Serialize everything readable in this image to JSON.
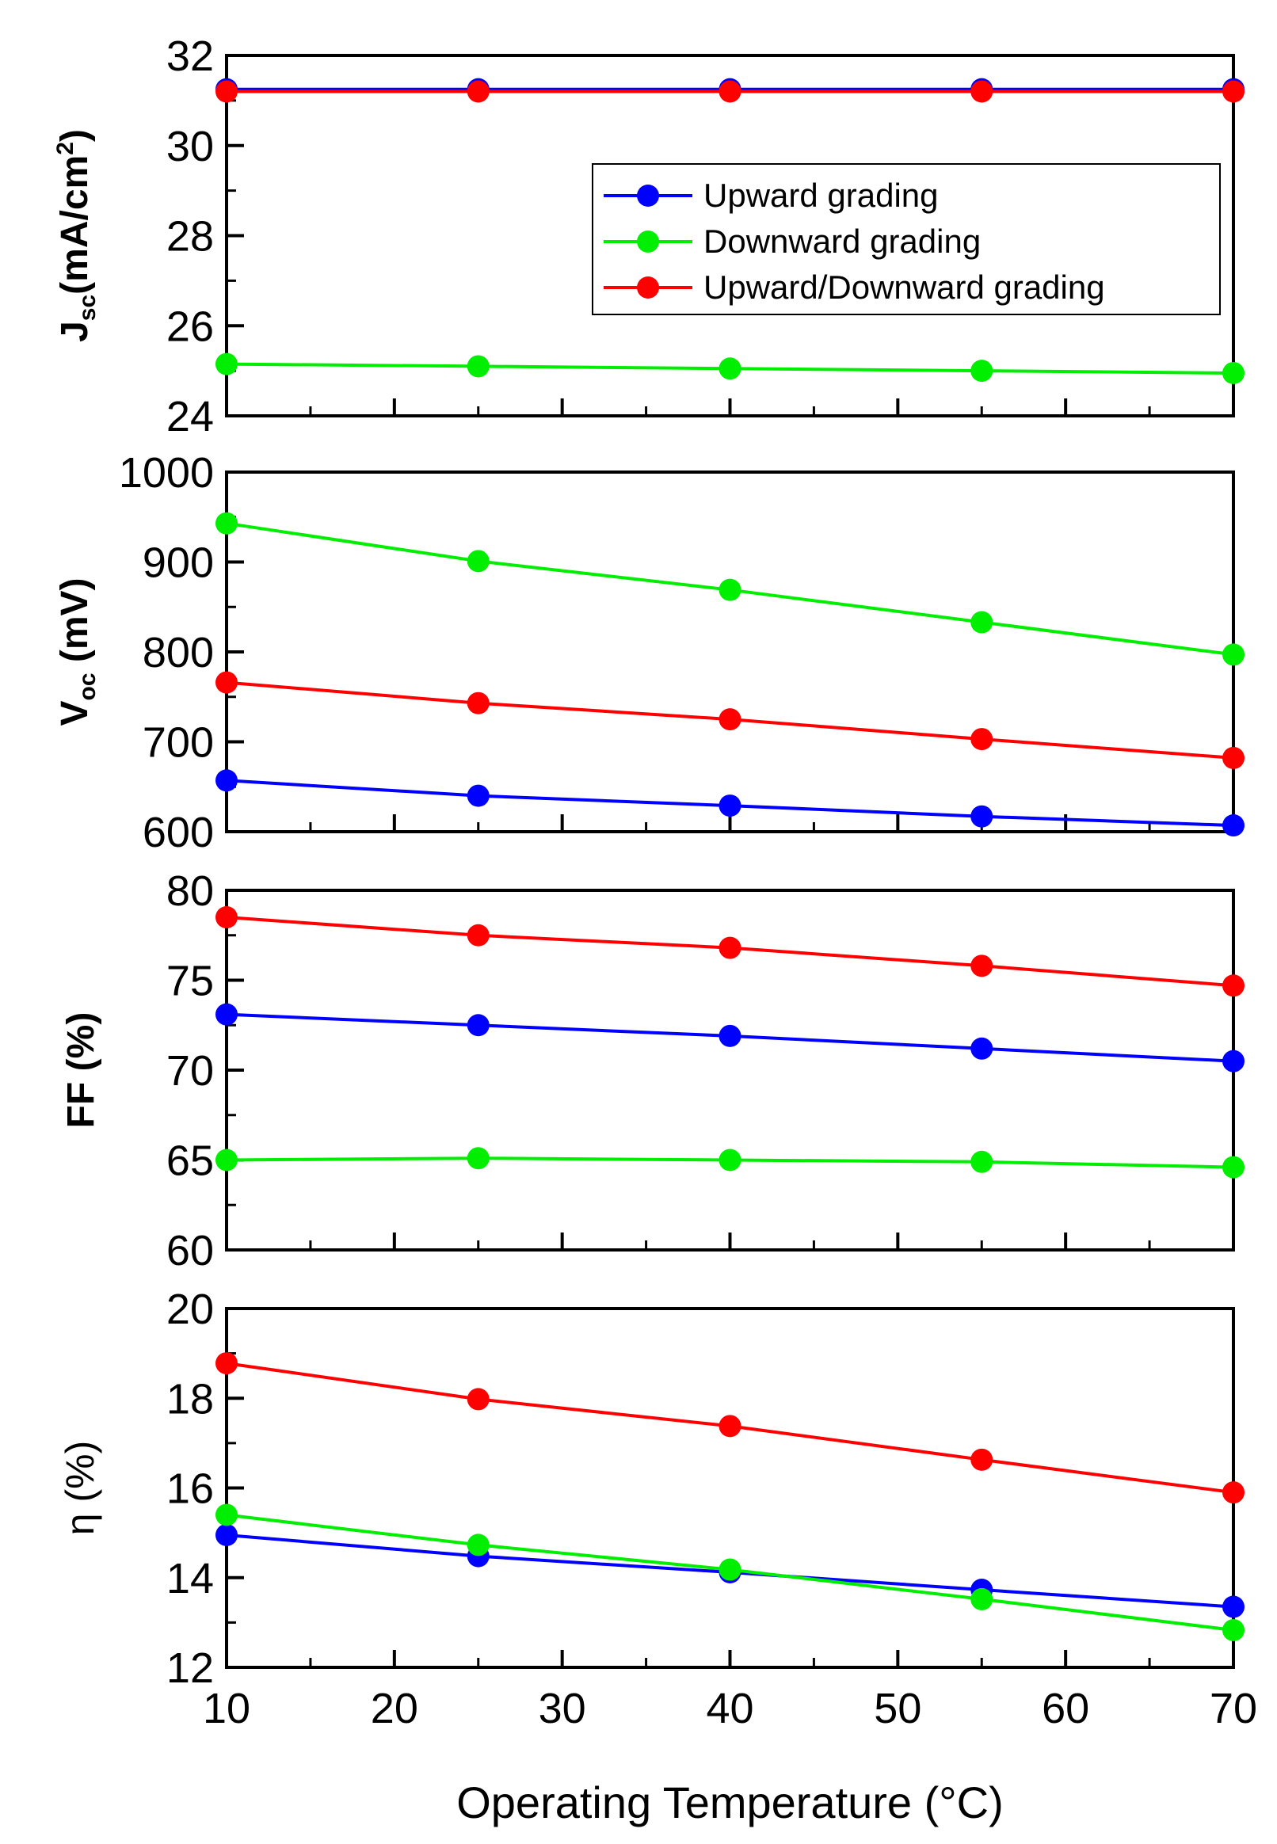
{
  "chart_data": [
    {
      "type": "line",
      "id": "jsc",
      "ylabel": {
        "main": "J",
        "sub": "sc",
        "rest": "(mA/cm",
        "sup": "2",
        "end": ")"
      },
      "ylim": [
        24,
        32
      ],
      "yticks": [
        24,
        26,
        28,
        30,
        32
      ],
      "ytick_labels": [
        "24",
        "26",
        "28",
        "30",
        "32"
      ],
      "x": [
        10,
        25,
        40,
        55,
        70
      ],
      "series": [
        {
          "name": "Upward grading",
          "color": "#0000ff",
          "values": [
            31.25,
            31.25,
            31.25,
            31.25,
            31.25
          ]
        },
        {
          "name": "Downward grading",
          "color": "#00ee00",
          "values": [
            25.15,
            25.1,
            25.05,
            25.0,
            24.95
          ]
        },
        {
          "name": "Upward/Downward grading",
          "color": "#ff0000",
          "values": [
            31.2,
            31.2,
            31.2,
            31.2,
            31.2
          ]
        }
      ],
      "legend": {
        "position": "top-right",
        "entries": [
          "Upward grading",
          "Downward grading",
          "Upward/Downward grading"
        ]
      }
    },
    {
      "type": "line",
      "id": "voc",
      "ylabel": {
        "main": "V",
        "sub": "oc",
        "rest": " (mV)"
      },
      "ylim": [
        600,
        1000
      ],
      "yticks": [
        600,
        700,
        800,
        900,
        1000
      ],
      "ytick_labels": [
        "600",
        "700",
        "800",
        "900",
        "1000"
      ],
      "x": [
        10,
        25,
        40,
        55,
        70
      ],
      "series": [
        {
          "name": "Upward grading",
          "color": "#0000ff",
          "values": [
            657,
            640,
            629,
            617,
            607
          ]
        },
        {
          "name": "Downward grading",
          "color": "#00ee00",
          "values": [
            943,
            901,
            869,
            833,
            797
          ]
        },
        {
          "name": "Upward/Downward grading",
          "color": "#ff0000",
          "values": [
            766,
            743,
            725,
            703,
            682
          ]
        }
      ]
    },
    {
      "type": "line",
      "id": "ff",
      "ylabel": {
        "main": "FF (%)"
      },
      "ylim": [
        60,
        80
      ],
      "yticks": [
        60,
        65,
        70,
        75,
        80
      ],
      "ytick_labels": [
        "60",
        "65",
        "70",
        "75",
        "80"
      ],
      "x": [
        10,
        25,
        40,
        55,
        70
      ],
      "series": [
        {
          "name": "Upward grading",
          "color": "#0000ff",
          "values": [
            73.1,
            72.5,
            71.9,
            71.2,
            70.5
          ]
        },
        {
          "name": "Downward grading",
          "color": "#00ee00",
          "values": [
            65.0,
            65.1,
            65.0,
            64.9,
            64.6
          ]
        },
        {
          "name": "Upward/Downward grading",
          "color": "#ff0000",
          "values": [
            78.5,
            77.5,
            76.8,
            75.8,
            74.7
          ]
        }
      ]
    },
    {
      "type": "line",
      "id": "eta",
      "ylabel": {
        "main": "η (%)"
      },
      "ylim": [
        12,
        20
      ],
      "yticks": [
        12,
        14,
        16,
        18,
        20
      ],
      "ytick_labels": [
        "12",
        "14",
        "16",
        "18",
        "20"
      ],
      "x": [
        10,
        25,
        40,
        55,
        70
      ],
      "xlim": [
        10,
        70
      ],
      "xticks": [
        10,
        20,
        30,
        40,
        50,
        60,
        70
      ],
      "xtick_labels": [
        "10",
        "20",
        "30",
        "40",
        "50",
        "60",
        "70"
      ],
      "xlabel": "Operating Temperature (°C)",
      "series": [
        {
          "name": "Upward grading",
          "color": "#0000ff",
          "values": [
            14.95,
            14.48,
            14.12,
            13.73,
            13.35
          ]
        },
        {
          "name": "Downward grading",
          "color": "#00ee00",
          "values": [
            15.4,
            14.73,
            14.18,
            13.52,
            12.83
          ]
        },
        {
          "name": "Upward/Downward grading",
          "color": "#ff0000",
          "values": [
            18.78,
            17.98,
            17.38,
            16.63,
            15.9
          ]
        }
      ]
    }
  ]
}
